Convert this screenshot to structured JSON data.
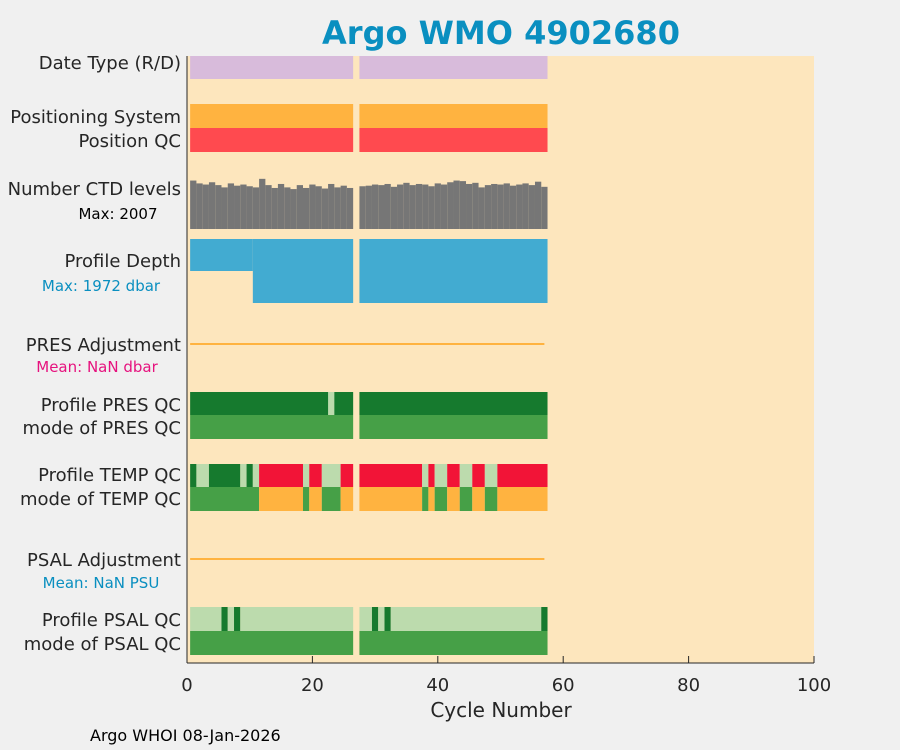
{
  "colors": {
    "background": "#f0f0f0",
    "plot_bg": "#fde6bd",
    "title": "#0a8fc0",
    "date_type": "#d8bbdb",
    "positioning": "#ffb340",
    "position_qc": "#ff4a4f",
    "ctd": "#767676",
    "depth": "#42abd1",
    "adjustment_line": "#ffb340",
    "pres_mean": "#e6127e",
    "psal_mean": "#0a8fc0",
    "qc_dark_green": "#167a2e",
    "qc_green": "#46a047",
    "qc_light_green": "#bcdbad",
    "qc_orange": "#ffb340",
    "qc_red": "#f21437"
  },
  "chart_data": {
    "type": "bar",
    "title": "Argo WMO 4902680",
    "xlabel": "Cycle Number",
    "xlim": [
      0,
      100
    ],
    "xticks": [
      "0",
      "20",
      "40",
      "60",
      "80",
      "100"
    ],
    "cycle_range": [
      1,
      57
    ],
    "missing_cycles": [
      27
    ],
    "rows": {
      "date_type": "Date Type (R/D)",
      "positioning_system": "Positioning System",
      "position_qc": "Position QC",
      "ctd_levels": "Number CTD levels",
      "ctd_max": "Max: 2007",
      "profile_depth": "Profile Depth",
      "depth_max": "Max: 1972 dbar",
      "pres_adjustment": "PRES Adjustment",
      "pres_mean": "Mean:  NaN dbar",
      "profile_pres_qc": "Profile PRES QC",
      "mode_pres_qc": "mode of PRES QC",
      "profile_temp_qc": "Profile TEMP QC",
      "mode_temp_qc": "mode of TEMP QC",
      "psal_adjustment": "PSAL Adjustment",
      "psal_mean": "Mean:  NaN PSU",
      "profile_psal_qc": "Profile PSAL QC",
      "mode_psal_qc": "mode of PSAL QC"
    },
    "ctd_levels_fraction": [
      0.85,
      0.8,
      0.78,
      0.82,
      0.77,
      0.73,
      0.8,
      0.76,
      0.78,
      0.75,
      0.73,
      0.88,
      0.77,
      0.72,
      0.79,
      0.73,
      0.7,
      0.77,
      0.72,
      0.78,
      0.75,
      0.71,
      0.79,
      0.73,
      0.76,
      0.72,
      0.0,
      0.75,
      0.76,
      0.78,
      0.77,
      0.79,
      0.74,
      0.78,
      0.81,
      0.77,
      0.79,
      0.78,
      0.75,
      0.8,
      0.78,
      0.82,
      0.85,
      0.84,
      0.79,
      0.81,
      0.73,
      0.77,
      0.79,
      0.78,
      0.8,
      0.76,
      0.78,
      0.8,
      0.77,
      0.83,
      0.74
    ],
    "depth_shallow_cycles": [
      1,
      10
    ],
    "depth_shallow_fraction": 0.5,
    "pres_qc_profile_exceptions": [
      {
        "from": 22.5,
        "to": 23.5,
        "color": "qc_light_green"
      }
    ],
    "temp_qc_profile_segments": [
      {
        "from": 0.5,
        "to": 1.5,
        "color": "qc_dark_green"
      },
      {
        "from": 1.5,
        "to": 3.5,
        "color": "qc_light_green"
      },
      {
        "from": 3.5,
        "to": 8.5,
        "color": "qc_dark_green"
      },
      {
        "from": 8.5,
        "to": 9.5,
        "color": "qc_light_green"
      },
      {
        "from": 9.5,
        "to": 10.5,
        "color": "qc_dark_green"
      },
      {
        "from": 10.5,
        "to": 11.5,
        "color": "qc_light_green"
      },
      {
        "from": 11.5,
        "to": 18.5,
        "color": "qc_red"
      },
      {
        "from": 18.5,
        "to": 19.5,
        "color": "qc_light_green"
      },
      {
        "from": 19.5,
        "to": 21.5,
        "color": "qc_red"
      },
      {
        "from": 21.5,
        "to": 24.5,
        "color": "qc_light_green"
      },
      {
        "from": 24.5,
        "to": 26.5,
        "color": "qc_red"
      },
      {
        "from": 27.5,
        "to": 37.5,
        "color": "qc_red"
      },
      {
        "from": 37.5,
        "to": 38.5,
        "color": "qc_light_green"
      },
      {
        "from": 38.5,
        "to": 39.5,
        "color": "qc_red"
      },
      {
        "from": 39.5,
        "to": 41.5,
        "color": "qc_light_green"
      },
      {
        "from": 41.5,
        "to": 43.5,
        "color": "qc_red"
      },
      {
        "from": 43.5,
        "to": 45.5,
        "color": "qc_light_green"
      },
      {
        "from": 45.5,
        "to": 47.5,
        "color": "qc_red"
      },
      {
        "from": 47.5,
        "to": 49.5,
        "color": "qc_light_green"
      },
      {
        "from": 49.5,
        "to": 57.5,
        "color": "qc_red"
      }
    ],
    "temp_qc_mode_segments": [
      {
        "from": 0.5,
        "to": 11.5,
        "color": "qc_green"
      },
      {
        "from": 11.5,
        "to": 18.5,
        "color": "qc_orange"
      },
      {
        "from": 18.5,
        "to": 19.5,
        "color": "qc_green"
      },
      {
        "from": 19.5,
        "to": 21.5,
        "color": "qc_orange"
      },
      {
        "from": 21.5,
        "to": 24.5,
        "color": "qc_green"
      },
      {
        "from": 24.5,
        "to": 26.5,
        "color": "qc_orange"
      },
      {
        "from": 27.5,
        "to": 37.5,
        "color": "qc_orange"
      },
      {
        "from": 37.5,
        "to": 38.5,
        "color": "qc_green"
      },
      {
        "from": 38.5,
        "to": 39.5,
        "color": "qc_orange"
      },
      {
        "from": 39.5,
        "to": 41.5,
        "color": "qc_green"
      },
      {
        "from": 41.5,
        "to": 43.5,
        "color": "qc_orange"
      },
      {
        "from": 43.5,
        "to": 45.5,
        "color": "qc_green"
      },
      {
        "from": 45.5,
        "to": 47.5,
        "color": "qc_orange"
      },
      {
        "from": 47.5,
        "to": 49.5,
        "color": "qc_green"
      },
      {
        "from": 49.5,
        "to": 57.5,
        "color": "qc_orange"
      }
    ],
    "psal_qc_profile_segments": [
      {
        "from": 0.5,
        "to": 5.5,
        "color": "qc_light_green"
      },
      {
        "from": 5.5,
        "to": 6.5,
        "color": "qc_dark_green"
      },
      {
        "from": 6.5,
        "to": 7.5,
        "color": "qc_light_green"
      },
      {
        "from": 7.5,
        "to": 8.5,
        "color": "qc_dark_green"
      },
      {
        "from": 8.5,
        "to": 26.5,
        "color": "qc_light_green"
      },
      {
        "from": 27.5,
        "to": 29.5,
        "color": "qc_light_green"
      },
      {
        "from": 29.5,
        "to": 30.5,
        "color": "qc_dark_green"
      },
      {
        "from": 30.5,
        "to": 31.5,
        "color": "qc_light_green"
      },
      {
        "from": 31.5,
        "to": 32.5,
        "color": "qc_dark_green"
      },
      {
        "from": 32.5,
        "to": 56.5,
        "color": "qc_light_green"
      },
      {
        "from": 56.5,
        "to": 57.5,
        "color": "qc_dark_green"
      }
    ],
    "adjustment_line_range": [
      0.5,
      57.0
    ]
  },
  "footer": "Argo WHOI 08-Jan-2026"
}
